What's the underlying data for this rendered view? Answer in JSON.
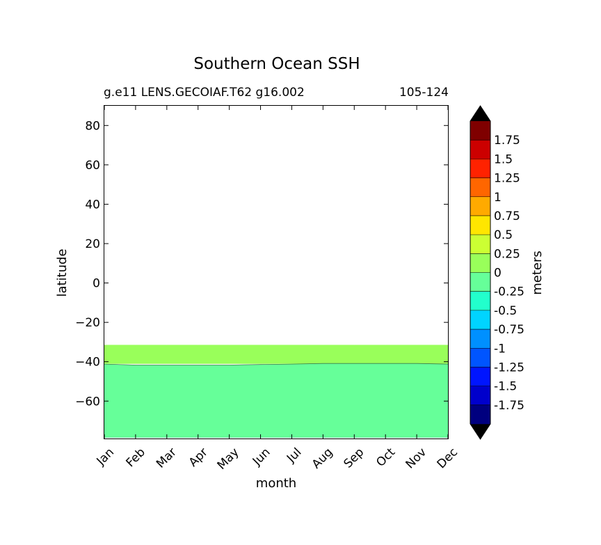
{
  "chart_data": {
    "type": "contour",
    "title": "Southern Ocean SSH",
    "subtitle_left": "g.e11 LENS.GECOIAF.T62 g16.002",
    "subtitle_right": "105-124",
    "xlabel": "month",
    "ylabel": "latitude",
    "x_categories": [
      "Jan",
      "Feb",
      "Mar",
      "Apr",
      "May",
      "Jun",
      "Jul",
      "Aug",
      "Sep",
      "Oct",
      "Nov",
      "Dec"
    ],
    "ylim": [
      -79,
      90
    ],
    "y_ticks": [
      80,
      60,
      40,
      20,
      0,
      -20,
      -40,
      -60
    ],
    "y_tick_labels": [
      "80",
      "60",
      "40",
      "20",
      "0",
      "−20",
      "−40",
      "−60"
    ],
    "regions": [
      {
        "level_range": [
          0,
          0.25
        ],
        "color": "#99ff5a",
        "lat_bottom": [
          -41,
          -41,
          -41,
          -41,
          -41,
          -41,
          -41,
          -41,
          -41,
          -41,
          -41,
          -41
        ],
        "lat_top": [
          -31.5,
          -31.5,
          -31.5,
          -31.5,
          -31.5,
          -31.5,
          -31.5,
          -31.5,
          -31.5,
          -31.5,
          -31.5,
          -31.5
        ]
      },
      {
        "level_range": [
          -0.25,
          0
        ],
        "color": "#66ff99",
        "lat_bottom": [
          -78.5,
          -78.5,
          -78.5,
          -78.5,
          -78.5,
          -78.5,
          -78.5,
          -78.5,
          -78.5,
          -78.5,
          -78.5,
          -78.5
        ],
        "lat_top": [
          -41.2,
          -41.7,
          -41.7,
          -41.7,
          -41.7,
          -41.4,
          -41.2,
          -40.9,
          -40.9,
          -40.9,
          -40.9,
          -41.2
        ]
      }
    ],
    "colorbar": {
      "label": "meters",
      "tick_labels": [
        "1.75",
        "1.5",
        "1.25",
        "1",
        "0.75",
        "0.5",
        "0.25",
        "0",
        "-0.25",
        "-0.5",
        "-0.75",
        "-1",
        "-1.25",
        "-1.5",
        "-1.75"
      ],
      "colors": [
        "#7f0000",
        "#cc0000",
        "#ff2200",
        "#ff6600",
        "#ffaa00",
        "#ffe600",
        "#ccff33",
        "#99ff5a",
        "#66ff99",
        "#22ffcc",
        "#00d4ff",
        "#0090ff",
        "#0055ff",
        "#0015ff",
        "#0000cc",
        "#00007f"
      ],
      "over_color": "#000000",
      "under_color": "#000000"
    }
  }
}
